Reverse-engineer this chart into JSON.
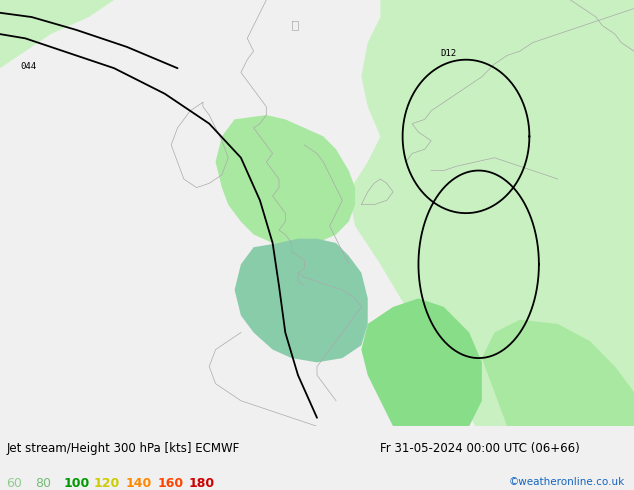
{
  "title_left": "Jet stream/Height 300 hPa [kts] ECMWF",
  "title_right": "Fr 31-05-2024 00:00 UTC (06+66)",
  "credit": "©weatheronline.co.uk",
  "legend_values": [
    "60",
    "80",
    "100",
    "120",
    "140",
    "160",
    "180"
  ],
  "legend_colors_actual": [
    "#aaddaa",
    "#88cc88",
    "#00bb00",
    "#cccc00",
    "#ff8800",
    "#ff4400",
    "#cc0000"
  ],
  "bg_color": "#e0e0e0",
  "map_bg": "#e0e0e0",
  "fig_width": 6.34,
  "fig_height": 4.9,
  "dpi": 100,
  "label_044": "044",
  "label_d12": "D12",
  "coast_color": "#aaaaaa",
  "contour_color": "#000000",
  "light_green1": "#c8f0c0",
  "light_green2": "#a8e8a0",
  "med_green": "#88dd88",
  "teal_green": "#88ccaa"
}
